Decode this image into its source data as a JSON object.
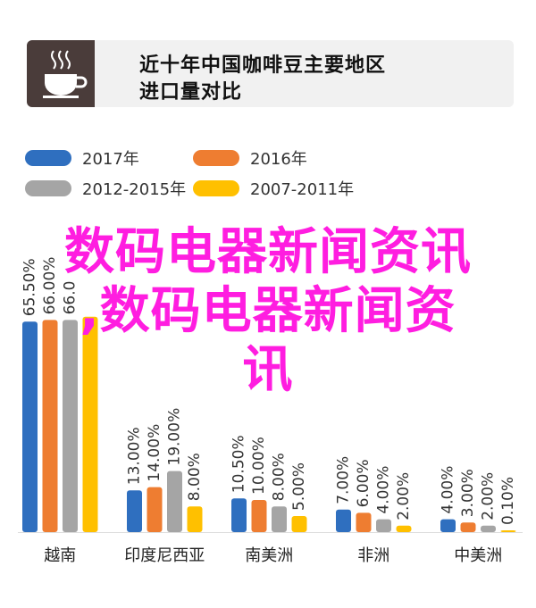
{
  "header": {
    "icon": "coffee-cup-icon",
    "title_line1": "近十年中国咖啡豆主要地区",
    "title_line2": "进口量对比"
  },
  "watermark": {
    "line1": "数码电器新闻资讯",
    "line2": ",数码电器新闻资",
    "line3": "讯"
  },
  "chart_data": {
    "type": "bar",
    "categories": [
      "越南",
      "印度尼西亚",
      "南美洲",
      "非洲",
      "中美洲"
    ],
    "series": [
      {
        "name": "2017年",
        "color": "#2f6fbf",
        "values": [
          65.5,
          13.0,
          10.5,
          7.0,
          4.0
        ],
        "labels": [
          "65.50%",
          "13.00%",
          "10.50%",
          "7.00%",
          "4.00%"
        ]
      },
      {
        "name": "2016年",
        "color": "#ee7d31",
        "values": [
          66.0,
          14.0,
          10.0,
          6.0,
          3.0
        ],
        "labels": [
          "66.00%",
          "14.00%",
          "10.00%",
          "6.00%",
          "3.00%"
        ]
      },
      {
        "name": "2012-2015年",
        "color": "#a5a5a5",
        "values": [
          66.0,
          19.0,
          8.0,
          4.0,
          2.0
        ],
        "labels": [
          "66.0",
          "19.00%",
          "8.00%",
          "4.00%",
          "2.00%"
        ]
      },
      {
        "name": "2007-2011年",
        "color": "#ffc000",
        "values": [
          67.0,
          8.0,
          5.0,
          2.0,
          0.1
        ],
        "labels": [
          "",
          "8.00%",
          "5.00%",
          "2.00%",
          "0.10%"
        ]
      }
    ],
    "ylim": [
      0,
      100
    ],
    "legend_position": "top",
    "grid": false
  }
}
